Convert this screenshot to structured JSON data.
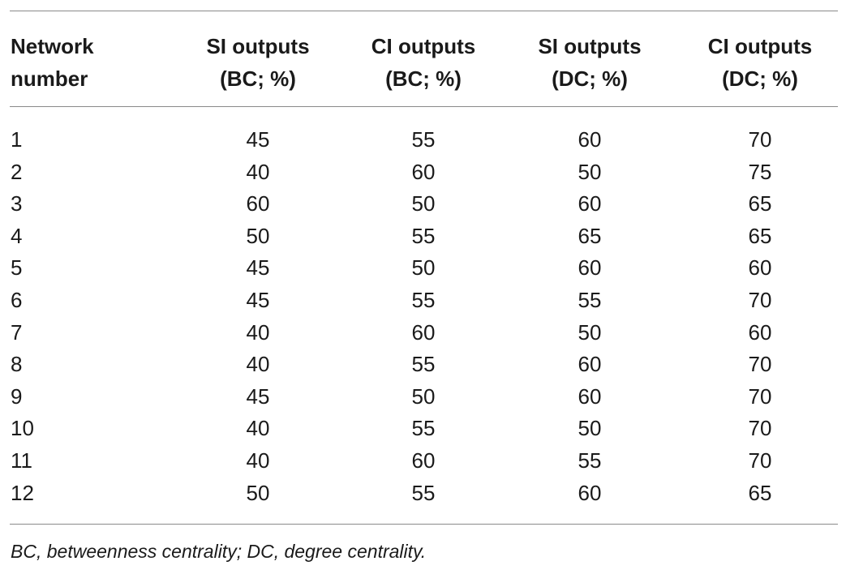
{
  "table": {
    "headers": [
      [
        "Network",
        "number"
      ],
      [
        "SI outputs",
        "(BC; %)"
      ],
      [
        "CI outputs",
        "(BC; %)"
      ],
      [
        "SI outputs",
        "(DC; %)"
      ],
      [
        "CI outputs",
        "(DC; %)"
      ]
    ],
    "rows": [
      [
        "1",
        "45",
        "55",
        "60",
        "70"
      ],
      [
        "2",
        "40",
        "60",
        "50",
        "75"
      ],
      [
        "3",
        "60",
        "50",
        "60",
        "65"
      ],
      [
        "4",
        "50",
        "55",
        "65",
        "65"
      ],
      [
        "5",
        "45",
        "50",
        "60",
        "60"
      ],
      [
        "6",
        "45",
        "55",
        "55",
        "70"
      ],
      [
        "7",
        "40",
        "60",
        "50",
        "60"
      ],
      [
        "8",
        "40",
        "55",
        "60",
        "70"
      ],
      [
        "9",
        "45",
        "50",
        "60",
        "70"
      ],
      [
        "10",
        "40",
        "55",
        "50",
        "70"
      ],
      [
        "11",
        "40",
        "60",
        "55",
        "70"
      ],
      [
        "12",
        "50",
        "55",
        "60",
        "65"
      ]
    ],
    "footnote": "BC, betweenness centrality; DC, degree centrality."
  }
}
